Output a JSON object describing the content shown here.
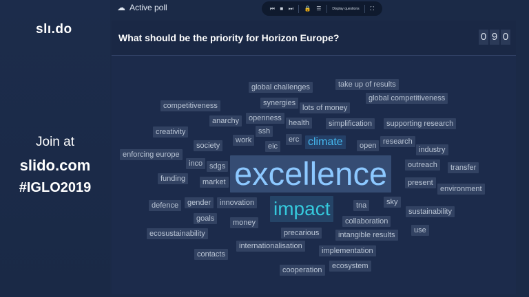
{
  "brand": {
    "logo": "slı.do",
    "join_line": "Join at",
    "site": "slido.com",
    "hashtag": "#IGLO2019"
  },
  "topbar": {
    "label": "Active poll",
    "icon": "poll-icon"
  },
  "controls": {
    "prev": "⏮",
    "stop": "■",
    "next": "⏭",
    "lock": "🔒",
    "results": "☰",
    "display_questions": "Display questions",
    "fullscreen": "⛶"
  },
  "poll": {
    "question": "What should be the priority for Horizon Europe?",
    "count_digits": [
      "0",
      "9",
      "0"
    ]
  },
  "colors": {
    "background": "#1b2a47",
    "highlight_top": "#8cc8ff",
    "highlight_second": "#35c9dc",
    "highlight_third": "#45b9f0"
  },
  "words": [
    "global challenges",
    "take up of results",
    "competitiveness",
    "synergies",
    "lots of money",
    "global competitiveness",
    "openness",
    "anarchy",
    "health",
    "simplification",
    "supporting research",
    "creativity",
    "ssh",
    "work",
    "eic",
    "erc",
    "climate",
    "open",
    "research",
    "industry",
    "society",
    "enforcing europe",
    "inco",
    "sdgs",
    "excellence",
    "outreach",
    "transfer",
    "funding",
    "market",
    "present",
    "environment",
    "defence",
    "gender",
    "innovation",
    "impact",
    "tna",
    "sky",
    "sustainability",
    "goals",
    "money",
    "collaboration",
    "use",
    "ecosustainability",
    "precarious",
    "intangible results",
    "internationalisation",
    "implementation",
    "contacts",
    "ecosystem",
    "cooperation"
  ]
}
